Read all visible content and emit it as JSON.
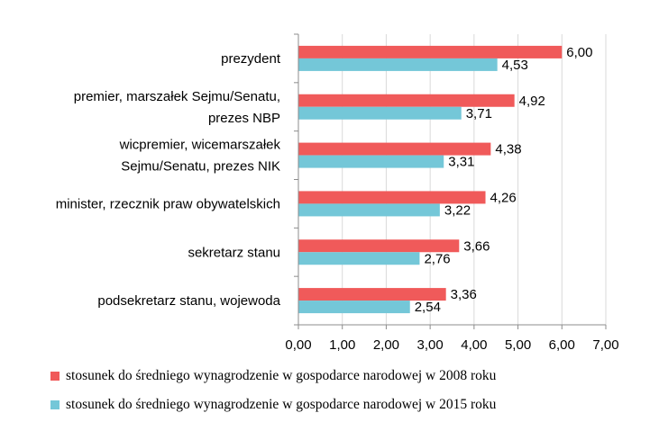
{
  "chart_data": {
    "type": "bar",
    "orientation": "horizontal",
    "categories": [
      [
        "prezydent"
      ],
      [
        "premier, marszałek Sejmu/Senatu,",
        "prezes NBP"
      ],
      [
        "wicpremier, wicemarszałek",
        "Sejmu/Senatu, prezes NIK"
      ],
      [
        "minister, rzecznik praw obywatelskich"
      ],
      [
        "sekretarz stanu"
      ],
      [
        "podsekretarz stanu, wojewoda"
      ]
    ],
    "series": [
      {
        "name": "stosunek do średniego wynagrodzenie w gospodarce narodowej w 2008 roku",
        "color": "#f05a5a",
        "values": [
          6.0,
          4.92,
          4.38,
          4.26,
          3.66,
          3.36
        ],
        "labels": [
          "6,00",
          "4,92",
          "4,38",
          "4,26",
          "3,66",
          "3,36"
        ]
      },
      {
        "name": "stosunek do średniego wynagrodzenie w gospodarce narodowej w 2015 roku",
        "color": "#74c7d8",
        "values": [
          4.53,
          3.71,
          3.31,
          3.22,
          2.76,
          2.54
        ],
        "labels": [
          "4,53",
          "3,71",
          "3,31",
          "3,22",
          "2,76",
          "2,54"
        ]
      }
    ],
    "xlim": [
      0,
      7
    ],
    "xticks": [
      0,
      1,
      2,
      3,
      4,
      5,
      6,
      7
    ],
    "xtick_labels": [
      "0,00",
      "1,00",
      "2,00",
      "3,00",
      "4,00",
      "5,00",
      "6,00",
      "7,00"
    ],
    "grid": true,
    "gridline_color": "#d9d9d9",
    "axis_color": "#8c8c8c",
    "legend_position": "bottom"
  }
}
